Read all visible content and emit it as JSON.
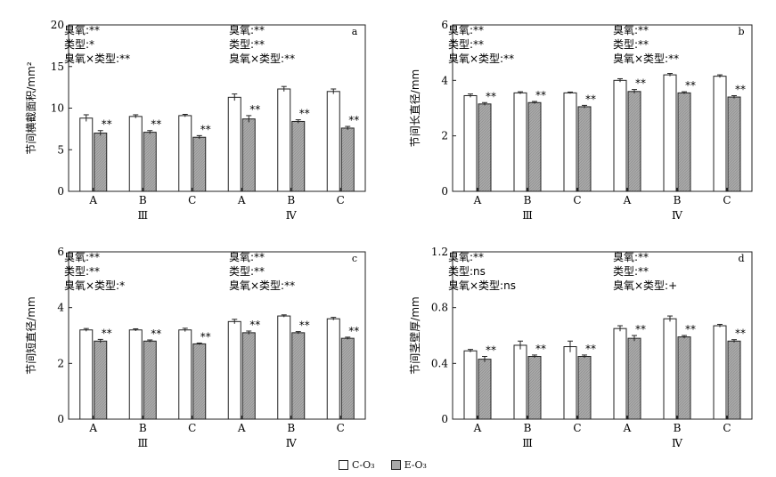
{
  "chart_data": [
    {
      "panel": "a",
      "type": "bar",
      "ylabel": "节间横截面积/mm²",
      "ylim": [
        0,
        20
      ],
      "yticks": [
        "0",
        "5",
        "10",
        "15",
        "20"
      ],
      "categories": [
        "A",
        "B",
        "C",
        "A",
        "B",
        "C"
      ],
      "groups": [
        "Ⅲ",
        "Ⅳ"
      ],
      "series": [
        {
          "name": "C-O₃",
          "values": [
            8.8,
            9.0,
            9.1,
            11.3,
            12.3,
            12.0
          ],
          "errors": [
            0.4,
            0.2,
            0.15,
            0.4,
            0.3,
            0.3
          ]
        },
        {
          "name": "E-O₃",
          "values": [
            7.0,
            7.1,
            6.5,
            8.7,
            8.4,
            7.6
          ],
          "errors": [
            0.3,
            0.2,
            0.2,
            0.4,
            0.2,
            0.2
          ]
        }
      ],
      "sig_labels": [
        "**",
        "**",
        "**",
        "**",
        "**",
        "**"
      ],
      "annotations_left": [
        "臭氧:**",
        "类型:*",
        "臭氧×类型:**"
      ],
      "annotations_right": [
        "臭氧:**",
        "类型:**",
        "臭氧×类型:**"
      ]
    },
    {
      "panel": "b",
      "type": "bar",
      "ylabel": "节间长直径/mm",
      "ylim": [
        0,
        6
      ],
      "yticks": [
        "0",
        "2",
        "4",
        "6"
      ],
      "categories": [
        "A",
        "B",
        "C",
        "A",
        "B",
        "C"
      ],
      "groups": [
        "Ⅲ",
        "Ⅳ"
      ],
      "series": [
        {
          "name": "C-O₃",
          "values": [
            3.45,
            3.55,
            3.55,
            4.0,
            4.2,
            4.15
          ],
          "errors": [
            0.06,
            0.04,
            0.03,
            0.06,
            0.05,
            0.05
          ]
        },
        {
          "name": "E-O₃",
          "values": [
            3.15,
            3.2,
            3.05,
            3.6,
            3.55,
            3.4
          ],
          "errors": [
            0.05,
            0.04,
            0.05,
            0.07,
            0.04,
            0.05
          ]
        }
      ],
      "sig_labels": [
        "**",
        "**",
        "**",
        "**",
        "**",
        "**"
      ],
      "annotations_left": [
        "臭氧:**",
        "类型:**",
        "臭氧×类型:**"
      ],
      "annotations_right": [
        "臭氧:**",
        "类型:**",
        "臭氧×类型:**"
      ]
    },
    {
      "panel": "c",
      "type": "bar",
      "ylabel": "节间短直径/mm",
      "ylim": [
        0,
        6
      ],
      "yticks": [
        "0",
        "2",
        "4",
        "6"
      ],
      "categories": [
        "A",
        "B",
        "C",
        "A",
        "B",
        "C"
      ],
      "groups": [
        "Ⅲ",
        "Ⅳ"
      ],
      "series": [
        {
          "name": "C-O₃",
          "values": [
            3.2,
            3.2,
            3.2,
            3.5,
            3.7,
            3.6
          ],
          "errors": [
            0.05,
            0.04,
            0.06,
            0.08,
            0.04,
            0.05
          ]
        },
        {
          "name": "E-O₃",
          "values": [
            2.8,
            2.8,
            2.7,
            3.1,
            3.1,
            2.9
          ],
          "errors": [
            0.06,
            0.04,
            0.03,
            0.06,
            0.04,
            0.04
          ]
        }
      ],
      "sig_labels": [
        "**",
        "**",
        "**",
        "**",
        "**",
        "**"
      ],
      "annotations_left": [
        "臭氧:**",
        "类型:**",
        "臭氧×类型:*"
      ],
      "annotations_right": [
        "臭氧:**",
        "类型:**",
        "臭氧×类型:**"
      ]
    },
    {
      "panel": "d",
      "type": "bar",
      "ylabel": "节间茎壁厚/mm",
      "ylim": [
        0,
        1.2
      ],
      "yticks": [
        "0",
        "0.4",
        "0.8",
        "1.2"
      ],
      "categories": [
        "A",
        "B",
        "C",
        "A",
        "B",
        "C"
      ],
      "groups": [
        "Ⅲ",
        "Ⅳ"
      ],
      "series": [
        {
          "name": "C-O₃",
          "values": [
            0.49,
            0.53,
            0.52,
            0.65,
            0.72,
            0.67
          ],
          "errors": [
            0.01,
            0.03,
            0.04,
            0.02,
            0.02,
            0.01
          ]
        },
        {
          "name": "E-O₃",
          "values": [
            0.43,
            0.45,
            0.45,
            0.58,
            0.59,
            0.56
          ],
          "errors": [
            0.02,
            0.01,
            0.01,
            0.02,
            0.01,
            0.01
          ]
        }
      ],
      "sig_labels": [
        "**",
        "**",
        "**",
        "**",
        "**",
        "**"
      ],
      "annotations_left": [
        "臭氧:**",
        "类型:ns",
        "臭氧×类型:ns"
      ],
      "annotations_right": [
        "臭氧:**",
        "类型:**",
        "臭氧×类型:+"
      ]
    }
  ],
  "legend": [
    {
      "label": "C-O₃",
      "color": "#ffffff"
    },
    {
      "label": "E-O₃",
      "color": "#a9a9a9"
    }
  ],
  "colors": {
    "control": "#ffffff",
    "elevated": "#a9a9a9",
    "axis": "#222222"
  }
}
